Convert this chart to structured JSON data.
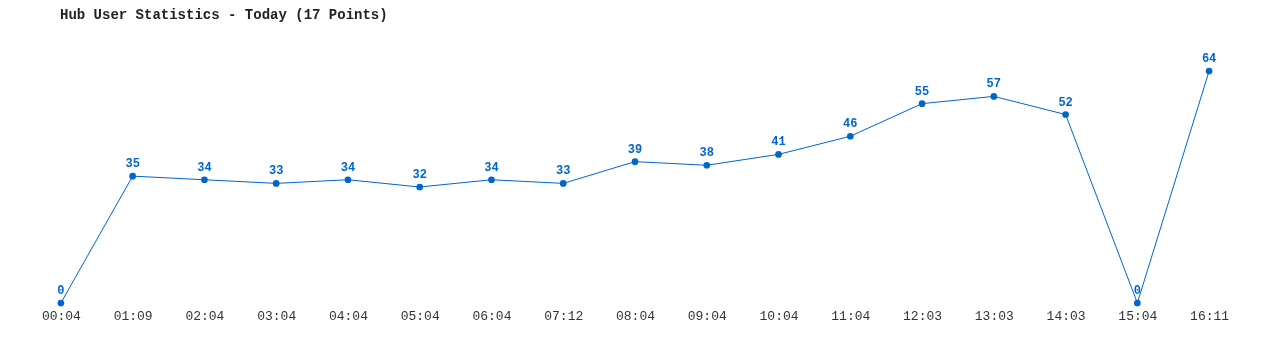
{
  "chart_data": {
    "type": "line",
    "title": "Hub User Statistics - Today (17 Points)",
    "categories": [
      "00:04",
      "01:09",
      "02:04",
      "03:04",
      "04:04",
      "05:04",
      "06:04",
      "07:12",
      "08:04",
      "09:04",
      "10:04",
      "11:04",
      "12:03",
      "13:03",
      "14:03",
      "15:04",
      "16:11"
    ],
    "series": [
      {
        "color": "#0066cc",
        "values": [
          0,
          35,
          34,
          33,
          34,
          32,
          34,
          33,
          39,
          38,
          41,
          46,
          55,
          57,
          52,
          0,
          64
        ]
      }
    ],
    "data_labels": true,
    "marker": "circle",
    "line_style": "solid",
    "tick_labels": "x"
  }
}
